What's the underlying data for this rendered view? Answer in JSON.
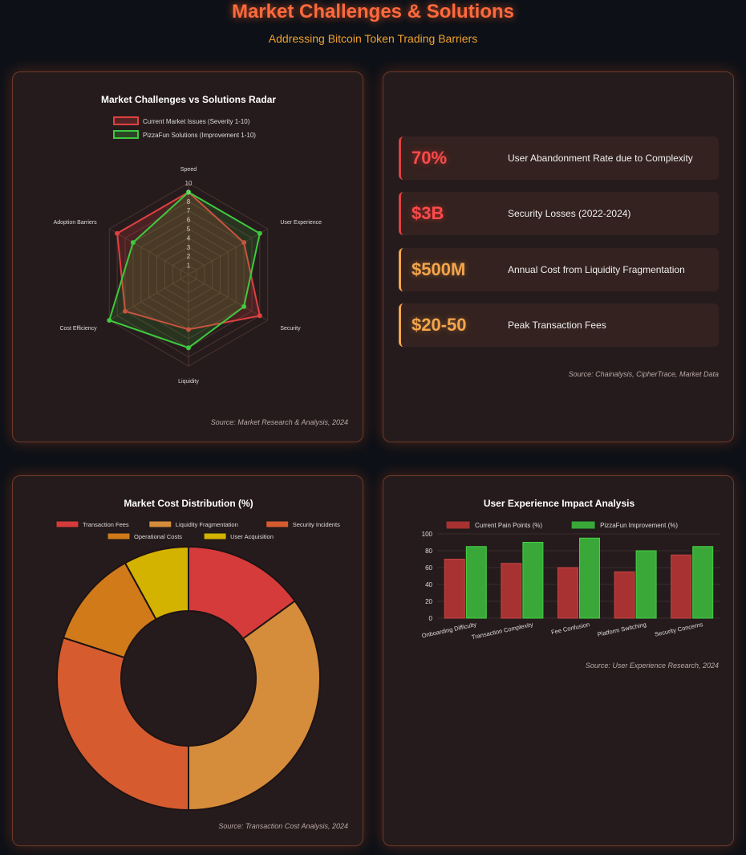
{
  "header": {
    "title": "Market Challenges & Solutions",
    "subtitle": "Addressing Bitcoin Token Trading Barriers"
  },
  "colors": {
    "issues": "#e04040",
    "solutions": "#3ec93e",
    "accent_title": "#ff6a3c",
    "accent_subtitle": "#f0a030",
    "stat_red": "#ff4a4a",
    "stat_orange": "#f5a54a"
  },
  "stats": {
    "items": [
      {
        "value": "70%",
        "label": "User Abandonment Rate due to Complexity",
        "tone": "red"
      },
      {
        "value": "$3B",
        "label": "Security Losses (2022-2024)",
        "tone": "red"
      },
      {
        "value": "$500M",
        "label": "Annual Cost from Liquidity Fragmentation",
        "tone": "orange"
      },
      {
        "value": "$20-50",
        "label": "Peak Transaction Fees",
        "tone": "orange"
      }
    ],
    "source": "Source: Chainalysis, CipherTrace, Market Data"
  },
  "chart_data": [
    {
      "type": "radar",
      "title": "Market Challenges vs Solutions Radar",
      "categories": [
        "Speed",
        "User Experience",
        "Security",
        "Liquidity",
        "Cost Efficiency",
        "Adoption Barriers"
      ],
      "ticks": [
        "1",
        "2",
        "3",
        "4",
        "5",
        "6",
        "7",
        "8",
        "9",
        "10"
      ],
      "rlim": [
        0,
        10
      ],
      "series": [
        {
          "name": "Current Market Issues (Severity 1-10)",
          "values": [
            9,
            7,
            9,
            6,
            8,
            9
          ],
          "color": "#e04040"
        },
        {
          "name": "PizzaFun Solutions (Improvement 1-10)",
          "values": [
            9,
            9,
            7,
            8,
            10,
            7
          ],
          "color": "#3ec93e"
        }
      ],
      "legend": "top",
      "source": "Source: Market Research & Analysis, 2024"
    },
    {
      "type": "pie",
      "title": "Market Cost Distribution (%)",
      "categories": [
        "Transaction Fees",
        "Liquidity Fragmentation",
        "Security Incidents",
        "Operational Costs",
        "User Acquisition"
      ],
      "values": [
        15,
        35,
        30,
        12,
        8
      ],
      "colors": [
        "#d63b3b",
        "#d68d3b",
        "#d65c30",
        "#d07a1a",
        "#d4b200"
      ],
      "legend": "top",
      "source": "Source: Transaction Cost Analysis, 2024"
    },
    {
      "type": "bar",
      "title": "User Experience Impact Analysis",
      "categories": [
        "Onboarding Difficulty",
        "Transaction Complexity",
        "Fee Confusion",
        "Platform Switching",
        "Security Concerns"
      ],
      "series": [
        {
          "name": "Current Pain Points (%)",
          "values": [
            70,
            65,
            60,
            55,
            75
          ],
          "color": "#a83232"
        },
        {
          "name": "PizzaFun Improvement (%)",
          "values": [
            85,
            90,
            95,
            80,
            85
          ],
          "color": "#39a839"
        }
      ],
      "ylim": [
        0,
        100
      ],
      "yticks": [
        "0",
        "20",
        "40",
        "60",
        "80",
        "100"
      ],
      "legend": "top",
      "source": "Source: User Experience Research, 2024"
    }
  ]
}
